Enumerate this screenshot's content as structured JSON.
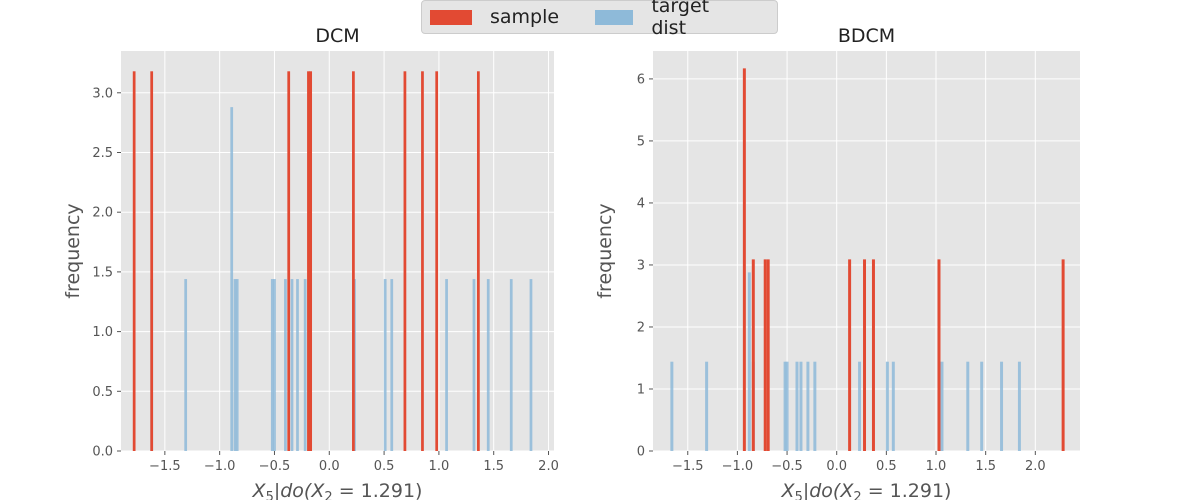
{
  "legend": {
    "items": [
      {
        "label": "sample",
        "color": "#E24A33"
      },
      {
        "label": "target dist",
        "color": "#8EBAD9"
      }
    ]
  },
  "colors": {
    "sample": "#E24A33",
    "target": "#8EBAD9",
    "panel_bg": "#E5E5E5",
    "grid": "#FFFFFF"
  },
  "chart_data": [
    {
      "type": "bar",
      "title": "DCM",
      "xlabel": "X_5|do(X_2 = 1.291)",
      "ylabel": "frequency",
      "xlim": [
        -1.9,
        2.05
      ],
      "ylim": [
        0,
        3.35
      ],
      "xticks": [
        {
          "value": -1.5,
          "label": "−1.5"
        },
        {
          "value": -1.0,
          "label": "−1.0"
        },
        {
          "value": -0.5,
          "label": "−0.5"
        },
        {
          "value": 0.0,
          "label": "0.0"
        },
        {
          "value": 0.5,
          "label": "0.5"
        },
        {
          "value": 1.0,
          "label": "1.0"
        },
        {
          "value": 1.5,
          "label": "1.5"
        },
        {
          "value": 2.0,
          "label": "2.0"
        }
      ],
      "yticks": [
        {
          "value": 0.0,
          "label": "0.0"
        },
        {
          "value": 0.5,
          "label": "0.5"
        },
        {
          "value": 1.0,
          "label": "1.0"
        },
        {
          "value": 1.5,
          "label": "1.5"
        },
        {
          "value": 2.0,
          "label": "2.0"
        },
        {
          "value": 2.5,
          "label": "2.5"
        },
        {
          "value": 3.0,
          "label": "3.0"
        }
      ],
      "bar_width": 0.025,
      "series": [
        {
          "name": "target dist",
          "color": "#8EBAD9",
          "opacity": 0.85,
          "bars": [
            {
              "x": -1.62,
              "y": 1.44
            },
            {
              "x": -1.31,
              "y": 1.44
            },
            {
              "x": -0.89,
              "y": 2.88
            },
            {
              "x": -0.86,
              "y": 1.44
            },
            {
              "x": -0.84,
              "y": 1.44
            },
            {
              "x": -0.52,
              "y": 1.44
            },
            {
              "x": -0.5,
              "y": 1.44
            },
            {
              "x": -0.4,
              "y": 1.44
            },
            {
              "x": -0.34,
              "y": 1.44
            },
            {
              "x": -0.29,
              "y": 1.44
            },
            {
              "x": -0.22,
              "y": 1.44
            },
            {
              "x": 0.23,
              "y": 1.44
            },
            {
              "x": 0.51,
              "y": 1.44
            },
            {
              "x": 0.57,
              "y": 1.44
            },
            {
              "x": 1.07,
              "y": 1.44
            },
            {
              "x": 1.32,
              "y": 1.44
            },
            {
              "x": 1.45,
              "y": 1.44
            },
            {
              "x": 1.66,
              "y": 1.44
            },
            {
              "x": 1.84,
              "y": 1.44
            }
          ]
        },
        {
          "name": "sample",
          "color": "#E24A33",
          "opacity": 1,
          "bars": [
            {
              "x": -1.78,
              "y": 3.18
            },
            {
              "x": -1.62,
              "y": 3.18
            },
            {
              "x": -0.37,
              "y": 3.18
            },
            {
              "x": -0.19,
              "y": 3.18
            },
            {
              "x": -0.17,
              "y": 3.18
            },
            {
              "x": 0.22,
              "y": 3.18
            },
            {
              "x": 0.69,
              "y": 3.18
            },
            {
              "x": 0.85,
              "y": 3.18
            },
            {
              "x": 0.98,
              "y": 3.18
            },
            {
              "x": 1.36,
              "y": 3.18
            }
          ]
        }
      ]
    },
    {
      "type": "bar",
      "title": "BDCM",
      "xlabel": "X_5|do(X_2 = 1.291)",
      "ylabel": "frequency",
      "xlim": [
        -1.85,
        2.45
      ],
      "ylim": [
        0,
        6.45
      ],
      "xticks": [
        {
          "value": -1.5,
          "label": "−1.5"
        },
        {
          "value": -1.0,
          "label": "−1.0"
        },
        {
          "value": -0.5,
          "label": "−0.5"
        },
        {
          "value": 0.0,
          "label": "0.0"
        },
        {
          "value": 0.5,
          "label": "0.5"
        },
        {
          "value": 1.0,
          "label": "1.0"
        },
        {
          "value": 1.5,
          "label": "1.5"
        },
        {
          "value": 2.0,
          "label": "2.0"
        }
      ],
      "yticks": [
        {
          "value": 0,
          "label": "0"
        },
        {
          "value": 1,
          "label": "1"
        },
        {
          "value": 2,
          "label": "2"
        },
        {
          "value": 3,
          "label": "3"
        },
        {
          "value": 4,
          "label": "4"
        },
        {
          "value": 5,
          "label": "5"
        },
        {
          "value": 6,
          "label": "6"
        }
      ],
      "bar_width": 0.03,
      "series": [
        {
          "name": "target dist",
          "color": "#8EBAD9",
          "opacity": 0.85,
          "bars": [
            {
              "x": -1.66,
              "y": 1.44
            },
            {
              "x": -1.31,
              "y": 1.44
            },
            {
              "x": -0.88,
              "y": 2.88
            },
            {
              "x": -0.84,
              "y": 1.44
            },
            {
              "x": -0.52,
              "y": 1.44
            },
            {
              "x": -0.5,
              "y": 1.44
            },
            {
              "x": -0.4,
              "y": 1.44
            },
            {
              "x": -0.36,
              "y": 1.44
            },
            {
              "x": -0.29,
              "y": 1.44
            },
            {
              "x": -0.22,
              "y": 1.44
            },
            {
              "x": 0.23,
              "y": 1.44
            },
            {
              "x": 0.51,
              "y": 1.44
            },
            {
              "x": 0.57,
              "y": 1.44
            },
            {
              "x": 1.06,
              "y": 1.44
            },
            {
              "x": 1.32,
              "y": 1.44
            },
            {
              "x": 1.46,
              "y": 1.44
            },
            {
              "x": 1.66,
              "y": 1.44
            },
            {
              "x": 1.84,
              "y": 1.44
            }
          ]
        },
        {
          "name": "sample",
          "color": "#E24A33",
          "opacity": 1,
          "bars": [
            {
              "x": -0.93,
              "y": 6.17
            },
            {
              "x": -0.84,
              "y": 3.09
            },
            {
              "x": -0.72,
              "y": 3.09
            },
            {
              "x": -0.69,
              "y": 3.09
            },
            {
              "x": 0.13,
              "y": 3.09
            },
            {
              "x": 0.28,
              "y": 3.09
            },
            {
              "x": 0.37,
              "y": 3.09
            },
            {
              "x": 1.03,
              "y": 3.09
            },
            {
              "x": 2.28,
              "y": 3.09
            }
          ]
        }
      ]
    }
  ]
}
